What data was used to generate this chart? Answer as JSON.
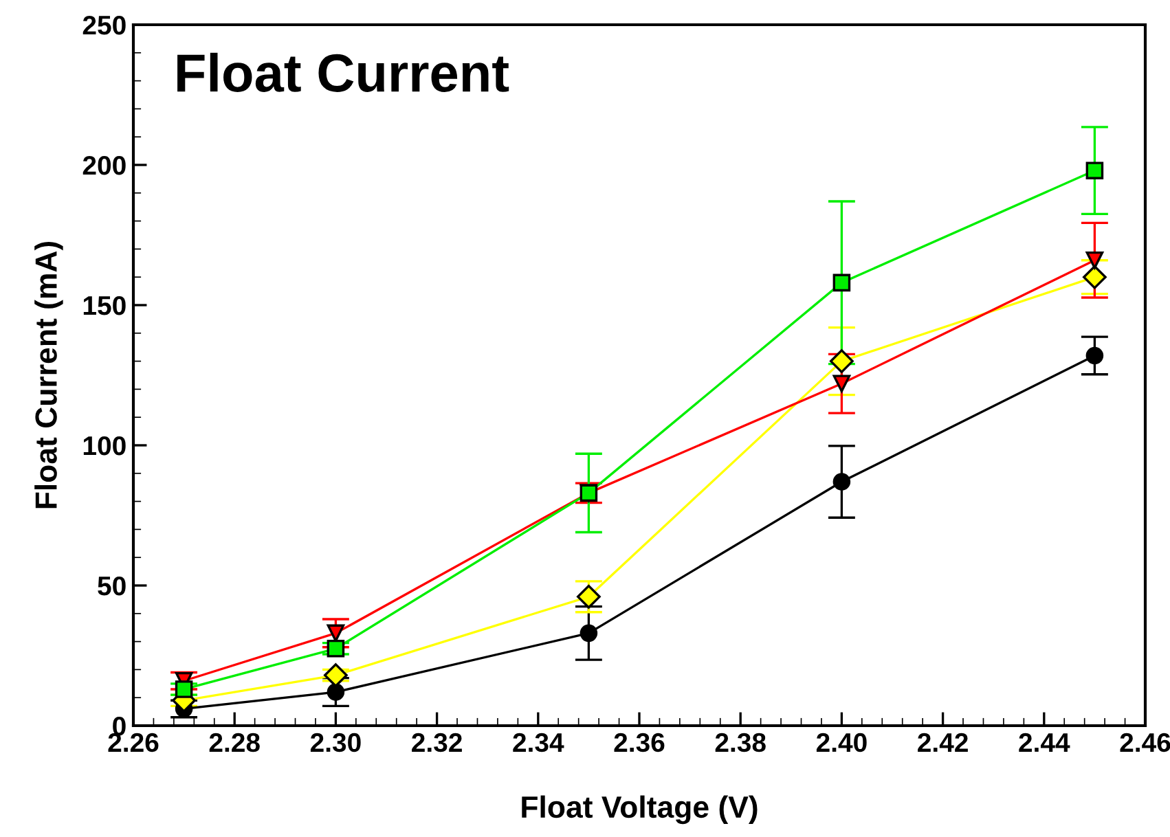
{
  "chart_data": {
    "type": "line",
    "title": "Float Current",
    "xlabel": "Float Voltage (V)",
    "ylabel": "Float Current (mA)",
    "x": [
      2.27,
      2.3,
      2.35,
      2.4,
      2.45
    ],
    "series": [
      {
        "color": "#000000",
        "marker": "circle",
        "values": [
          6,
          12,
          33,
          87,
          132
        ],
        "errors": [
          3,
          5,
          9.5,
          12.8,
          6.7
        ]
      },
      {
        "color": "#ffff00",
        "marker": "diamond",
        "values": [
          9,
          18,
          46,
          130,
          160
        ],
        "errors": [
          2,
          2,
          5.5,
          12,
          6
        ]
      },
      {
        "color": "#ff0000",
        "marker": "triangle",
        "values": [
          16,
          33,
          83,
          122,
          166
        ],
        "errors": [
          3,
          5,
          3.5,
          10.5,
          13.3
        ]
      },
      {
        "color": "#00ee00",
        "marker": "square",
        "values": [
          13,
          27.5,
          83,
          158,
          198
        ],
        "errors": [
          2,
          2,
          14,
          29,
          15.5
        ]
      }
    ],
    "xlim": [
      2.26,
      2.46
    ],
    "xticks": [
      {
        "value": 2.26,
        "label": "2.26"
      },
      {
        "value": 2.28,
        "label": "2.28"
      },
      {
        "value": 2.3,
        "label": "2.30"
      },
      {
        "value": 2.32,
        "label": "2.32"
      },
      {
        "value": 2.34,
        "label": "2.34"
      },
      {
        "value": 2.36,
        "label": "2.36"
      },
      {
        "value": 2.38,
        "label": "2.38"
      },
      {
        "value": 2.4,
        "label": "2.40"
      },
      {
        "value": 2.42,
        "label": "2.42"
      },
      {
        "value": 2.44,
        "label": "2.44"
      },
      {
        "value": 2.46,
        "label": "2.46"
      }
    ],
    "ylim": [
      0,
      250
    ],
    "yticks": [
      0,
      50,
      100,
      150,
      200,
      250
    ],
    "grid": false,
    "legend": false
  }
}
